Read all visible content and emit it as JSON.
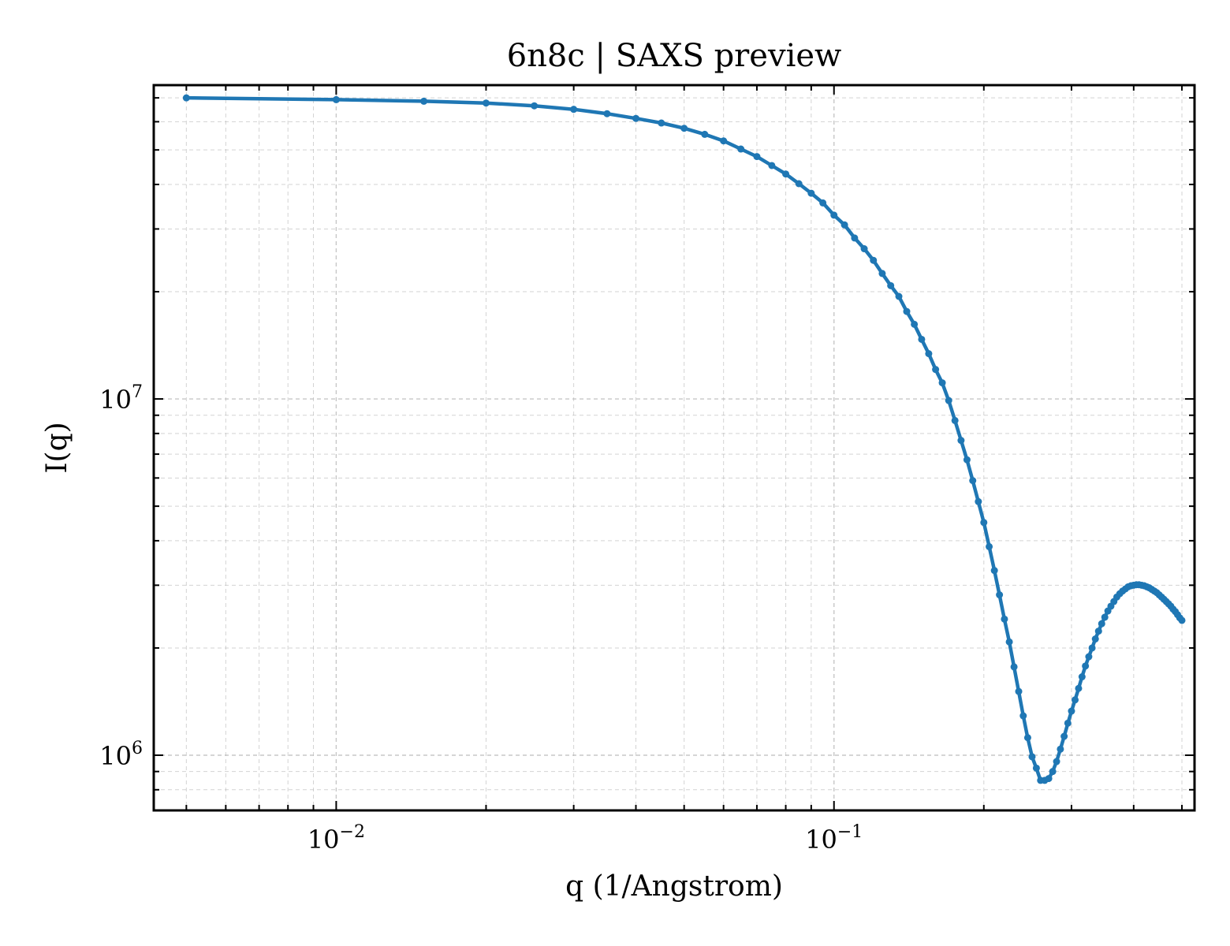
{
  "chart_data": {
    "type": "line",
    "title": "6n8c | SAXS preview",
    "xlabel": "q (1/Angstrom)",
    "ylabel": "I(q)",
    "xscale": "log",
    "yscale": "log",
    "xlim": [
      0.0043,
      0.53
    ],
    "ylim": [
      700000,
      76000000
    ],
    "grid": true,
    "markers": true,
    "color": "#1f77b4",
    "x_ticks": [
      {
        "base": "10",
        "exp": "−2",
        "value": 0.01
      },
      {
        "base": "10",
        "exp": "−1",
        "value": 0.1
      }
    ],
    "y_ticks": [
      {
        "base": "10",
        "exp": "6",
        "value": 1000000
      },
      {
        "base": "10",
        "exp": "7",
        "value": 10000000
      }
    ],
    "series": [
      {
        "x": [
          0.005,
          0.01,
          0.015,
          0.02,
          0.025,
          0.03,
          0.035,
          0.04,
          0.045,
          0.05,
          0.055,
          0.06,
          0.065,
          0.07,
          0.075,
          0.08,
          0.085,
          0.09,
          0.095,
          0.1,
          0.105,
          0.11,
          0.115,
          0.12,
          0.125,
          0.13,
          0.135,
          0.14,
          0.145,
          0.15,
          0.155,
          0.16,
          0.165,
          0.17,
          0.175,
          0.18,
          0.185,
          0.19,
          0.195,
          0.2,
          0.205,
          0.21,
          0.215,
          0.22,
          0.225,
          0.23,
          0.235,
          0.24,
          0.245,
          0.25,
          0.255,
          0.26,
          0.265,
          0.27,
          0.275,
          0.28,
          0.285,
          0.29,
          0.295,
          0.3,
          0.305,
          0.31,
          0.315,
          0.32,
          0.325,
          0.33,
          0.335,
          0.34,
          0.345,
          0.35,
          0.355,
          0.36,
          0.365,
          0.37,
          0.375,
          0.38,
          0.385,
          0.39,
          0.395,
          0.4,
          0.405,
          0.41,
          0.415,
          0.42,
          0.425,
          0.43,
          0.435,
          0.44,
          0.445,
          0.45,
          0.455,
          0.46,
          0.465,
          0.47,
          0.475,
          0.48,
          0.485,
          0.49,
          0.495,
          0.5
        ],
        "y": [
          70000000,
          69200000,
          68500000,
          67700000,
          66500000,
          65000000,
          63200000,
          61300000,
          59500000,
          57500000,
          55300000,
          53000000,
          50300000,
          47900000,
          45200000,
          42800000,
          40200000,
          37800000,
          35500000,
          32800000,
          30800000,
          28300000,
          26400000,
          24500000,
          22500000,
          20800000,
          19400000,
          17600000,
          16200000,
          14700000,
          13400000,
          12100000,
          11100000,
          9900000,
          8700000,
          7650000,
          6750000,
          5900000,
          5150000,
          4500000,
          3850000,
          3300000,
          2820000,
          2410000,
          2080000,
          1770000,
          1510000,
          1290000,
          1120000,
          990000,
          920000,
          850000,
          850000,
          860000,
          900000,
          960000,
          1040000,
          1130000,
          1230000,
          1330000,
          1430000,
          1540000,
          1660000,
          1780000,
          1890000,
          2000000,
          2120000,
          2230000,
          2340000,
          2440000,
          2540000,
          2620000,
          2700000,
          2780000,
          2840000,
          2890000,
          2930000,
          2970000,
          2990000,
          3000000,
          3010000,
          3010000,
          3000000,
          2990000,
          2970000,
          2950000,
          2920000,
          2890000,
          2860000,
          2820000,
          2780000,
          2740000,
          2700000,
          2660000,
          2620000,
          2570000,
          2530000,
          2480000,
          2430000,
          2390000
        ]
      }
    ]
  }
}
